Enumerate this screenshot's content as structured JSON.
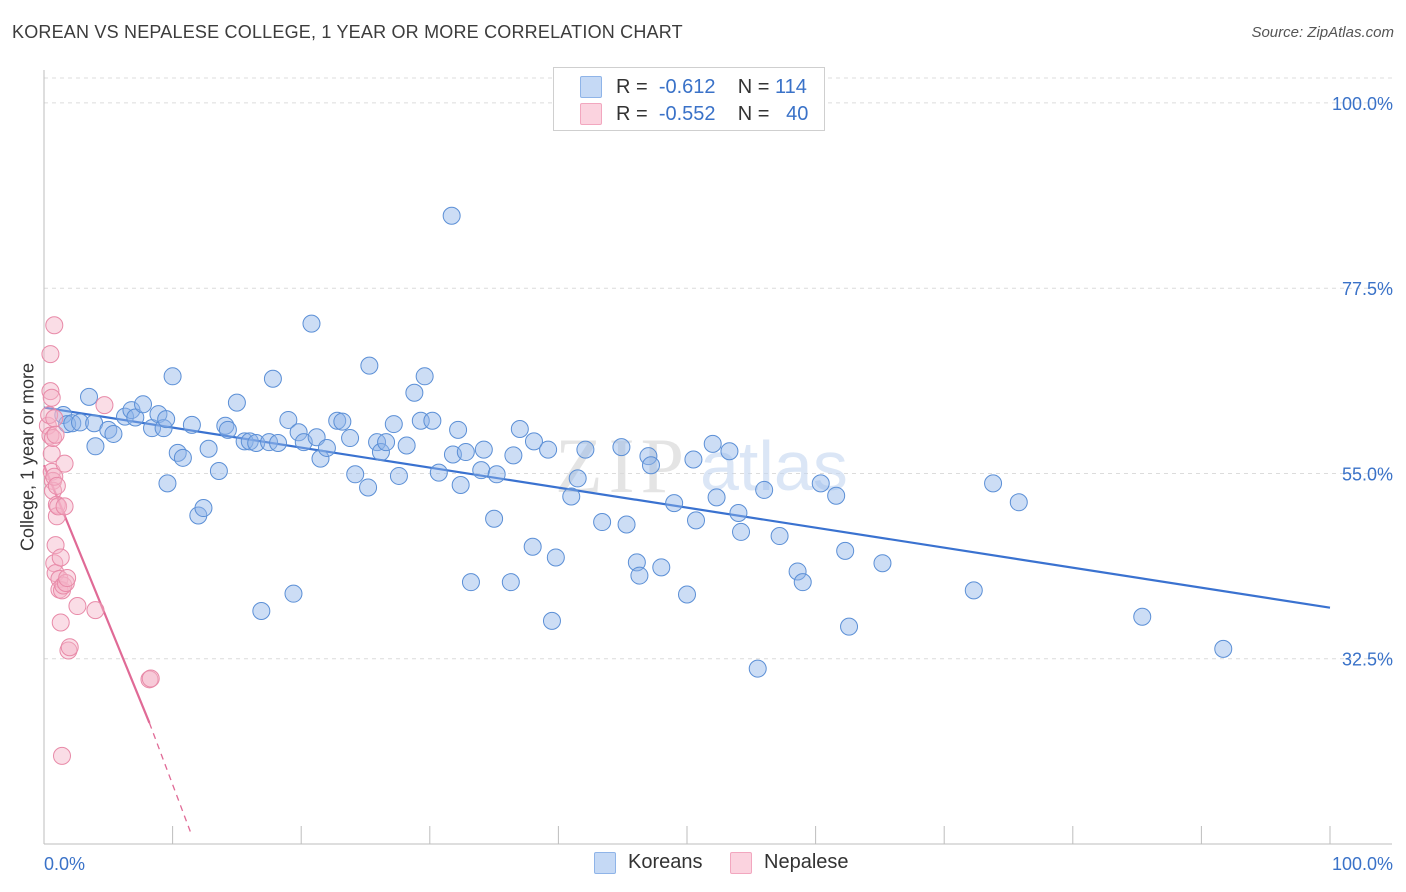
{
  "title": "KOREAN VS NEPALESE COLLEGE, 1 YEAR OR MORE CORRELATION CHART",
  "source": "Source: ZipAtlas.com",
  "watermark": {
    "zip": "ZIP",
    "atlas": "atlas"
  },
  "legend": {
    "rows": [
      {
        "r_label": "R =",
        "r_value": "-0.612",
        "n_label": "N =",
        "n_value": "114",
        "color": "#8fb4e8"
      },
      {
        "r_label": "R =",
        "r_value": "-0.552",
        "n_label": "N =",
        "n_value": "40",
        "color": "#f2a7bf"
      }
    ]
  },
  "chart_data": {
    "type": "scatter",
    "title": "KOREAN VS NEPALESE COLLEGE, 1 YEAR OR MORE CORRELATION CHART",
    "xlabel": "",
    "ylabel": "College, 1 year or more",
    "xlim": [
      0,
      100
    ],
    "ylim": [
      10,
      104
    ],
    "x_tick_labels": [
      "0.0%",
      "100.0%"
    ],
    "y_ticks": [
      32.5,
      55.0,
      77.5,
      100.0
    ],
    "y_tick_labels": [
      "32.5%",
      "55.0%",
      "77.5%",
      "100.0%"
    ],
    "grid": "horizontal dashed",
    "legend_position": "top-center",
    "series": [
      {
        "name": "Koreans",
        "color": "#8fb4e8",
        "stroke": "#5b8fd6",
        "trend": {
          "x": [
            0,
            100
          ],
          "y": [
            63.0,
            38.7
          ],
          "color": "#3a72d0"
        },
        "points": [
          [
            1.5,
            62.1
          ],
          [
            1.8,
            61.0
          ],
          [
            2.2,
            61.1
          ],
          [
            2.8,
            61.2
          ],
          [
            3.5,
            64.3
          ],
          [
            3.9,
            61.1
          ],
          [
            4.0,
            58.3
          ],
          [
            5.0,
            60.3
          ],
          [
            5.4,
            59.8
          ],
          [
            6.3,
            61.9
          ],
          [
            6.8,
            62.7
          ],
          [
            7.1,
            61.8
          ],
          [
            7.7,
            63.4
          ],
          [
            8.4,
            60.5
          ],
          [
            8.9,
            62.2
          ],
          [
            9.3,
            60.5
          ],
          [
            9.5,
            61.6
          ],
          [
            9.6,
            53.8
          ],
          [
            10.0,
            66.8
          ],
          [
            10.4,
            57.5
          ],
          [
            10.8,
            56.9
          ],
          [
            11.5,
            60.9
          ],
          [
            12.0,
            49.9
          ],
          [
            12.4,
            50.8
          ],
          [
            12.8,
            58.0
          ],
          [
            13.6,
            55.3
          ],
          [
            14.1,
            60.8
          ],
          [
            14.3,
            60.3
          ],
          [
            15.0,
            63.6
          ],
          [
            15.6,
            58.9
          ],
          [
            16.0,
            58.9
          ],
          [
            16.5,
            58.7
          ],
          [
            16.9,
            38.3
          ],
          [
            17.5,
            58.8
          ],
          [
            17.8,
            66.5
          ],
          [
            18.2,
            58.7
          ],
          [
            19.0,
            61.5
          ],
          [
            19.4,
            40.4
          ],
          [
            19.8,
            60.0
          ],
          [
            20.2,
            58.8
          ],
          [
            20.8,
            73.2
          ],
          [
            21.2,
            59.4
          ],
          [
            21.5,
            56.8
          ],
          [
            22.0,
            58.1
          ],
          [
            22.8,
            61.4
          ],
          [
            23.2,
            61.3
          ],
          [
            23.8,
            59.3
          ],
          [
            24.2,
            54.9
          ],
          [
            25.2,
            53.3
          ],
          [
            25.3,
            68.1
          ],
          [
            25.9,
            58.8
          ],
          [
            26.2,
            57.6
          ],
          [
            26.6,
            58.8
          ],
          [
            27.2,
            61.0
          ],
          [
            27.6,
            54.7
          ],
          [
            28.2,
            58.4
          ],
          [
            28.8,
            64.8
          ],
          [
            29.3,
            61.4
          ],
          [
            29.6,
            66.8
          ],
          [
            30.2,
            61.4
          ],
          [
            30.7,
            55.1
          ],
          [
            31.7,
            86.3
          ],
          [
            31.8,
            57.3
          ],
          [
            32.2,
            60.3
          ],
          [
            32.4,
            53.6
          ],
          [
            32.8,
            57.6
          ],
          [
            33.2,
            41.8
          ],
          [
            34.0,
            55.4
          ],
          [
            34.2,
            57.9
          ],
          [
            35.0,
            49.5
          ],
          [
            35.2,
            54.9
          ],
          [
            36.3,
            41.8
          ],
          [
            36.5,
            57.2
          ],
          [
            37.0,
            60.4
          ],
          [
            38.0,
            46.1
          ],
          [
            38.1,
            58.9
          ],
          [
            39.2,
            57.9
          ],
          [
            39.5,
            37.1
          ],
          [
            39.8,
            44.8
          ],
          [
            41.0,
            52.2
          ],
          [
            41.5,
            54.4
          ],
          [
            42.1,
            57.9
          ],
          [
            43.4,
            49.1
          ],
          [
            44.9,
            58.2
          ],
          [
            45.3,
            48.8
          ],
          [
            46.1,
            44.2
          ],
          [
            46.3,
            42.6
          ],
          [
            47.0,
            57.1
          ],
          [
            47.2,
            56.0
          ],
          [
            48.0,
            43.6
          ],
          [
            49.0,
            51.4
          ],
          [
            50.0,
            40.3
          ],
          [
            50.5,
            56.7
          ],
          [
            50.7,
            49.3
          ],
          [
            52.0,
            58.6
          ],
          [
            52.3,
            52.1
          ],
          [
            53.3,
            57.7
          ],
          [
            54.0,
            50.2
          ],
          [
            54.2,
            47.9
          ],
          [
            55.5,
            31.3
          ],
          [
            56.0,
            53.0
          ],
          [
            57.2,
            47.4
          ],
          [
            58.6,
            43.1
          ],
          [
            59.0,
            41.8
          ],
          [
            60.4,
            53.8
          ],
          [
            61.6,
            52.3
          ],
          [
            62.3,
            45.6
          ],
          [
            62.6,
            36.4
          ],
          [
            65.2,
            44.1
          ],
          [
            72.3,
            40.8
          ],
          [
            73.8,
            53.8
          ],
          [
            75.8,
            51.5
          ],
          [
            85.4,
            37.6
          ],
          [
            91.7,
            33.7
          ]
        ]
      },
      {
        "name": "Nepalese",
        "color": "#f4b3c8",
        "stroke": "#e88aa8",
        "trend": {
          "x": [
            0,
            8.2
          ],
          "y": [
            56.0,
            24.7
          ],
          "color": "#e06a96",
          "dashed_x": [
            8.2,
            11.5
          ],
          "dashed_y": [
            24.7,
            11.0
          ]
        },
        "points": [
          [
            0.3,
            60.8
          ],
          [
            0.4,
            62.1
          ],
          [
            0.5,
            65.0
          ],
          [
            0.5,
            59.6
          ],
          [
            0.5,
            69.5
          ],
          [
            0.6,
            64.2
          ],
          [
            0.6,
            57.4
          ],
          [
            0.6,
            55.2
          ],
          [
            0.7,
            59.3
          ],
          [
            0.7,
            54.1
          ],
          [
            0.7,
            52.9
          ],
          [
            0.8,
            73.0
          ],
          [
            0.8,
            54.6
          ],
          [
            0.8,
            61.7
          ],
          [
            0.8,
            44.1
          ],
          [
            0.9,
            59.7
          ],
          [
            0.9,
            46.3
          ],
          [
            0.9,
            42.9
          ],
          [
            1.0,
            53.5
          ],
          [
            1.0,
            51.2
          ],
          [
            1.0,
            49.8
          ],
          [
            1.1,
            51.0
          ],
          [
            1.2,
            42.2
          ],
          [
            1.2,
            40.9
          ],
          [
            1.3,
            36.9
          ],
          [
            1.3,
            44.8
          ],
          [
            1.4,
            40.8
          ],
          [
            1.5,
            41.4
          ],
          [
            1.6,
            56.2
          ],
          [
            1.6,
            51.0
          ],
          [
            1.7,
            41.7
          ],
          [
            1.8,
            42.3
          ],
          [
            1.9,
            33.5
          ],
          [
            2.0,
            33.9
          ],
          [
            2.6,
            38.9
          ],
          [
            4.0,
            38.4
          ],
          [
            4.7,
            63.3
          ],
          [
            8.2,
            30.0
          ],
          [
            8.3,
            30.1
          ],
          [
            1.4,
            20.7
          ]
        ]
      }
    ]
  }
}
